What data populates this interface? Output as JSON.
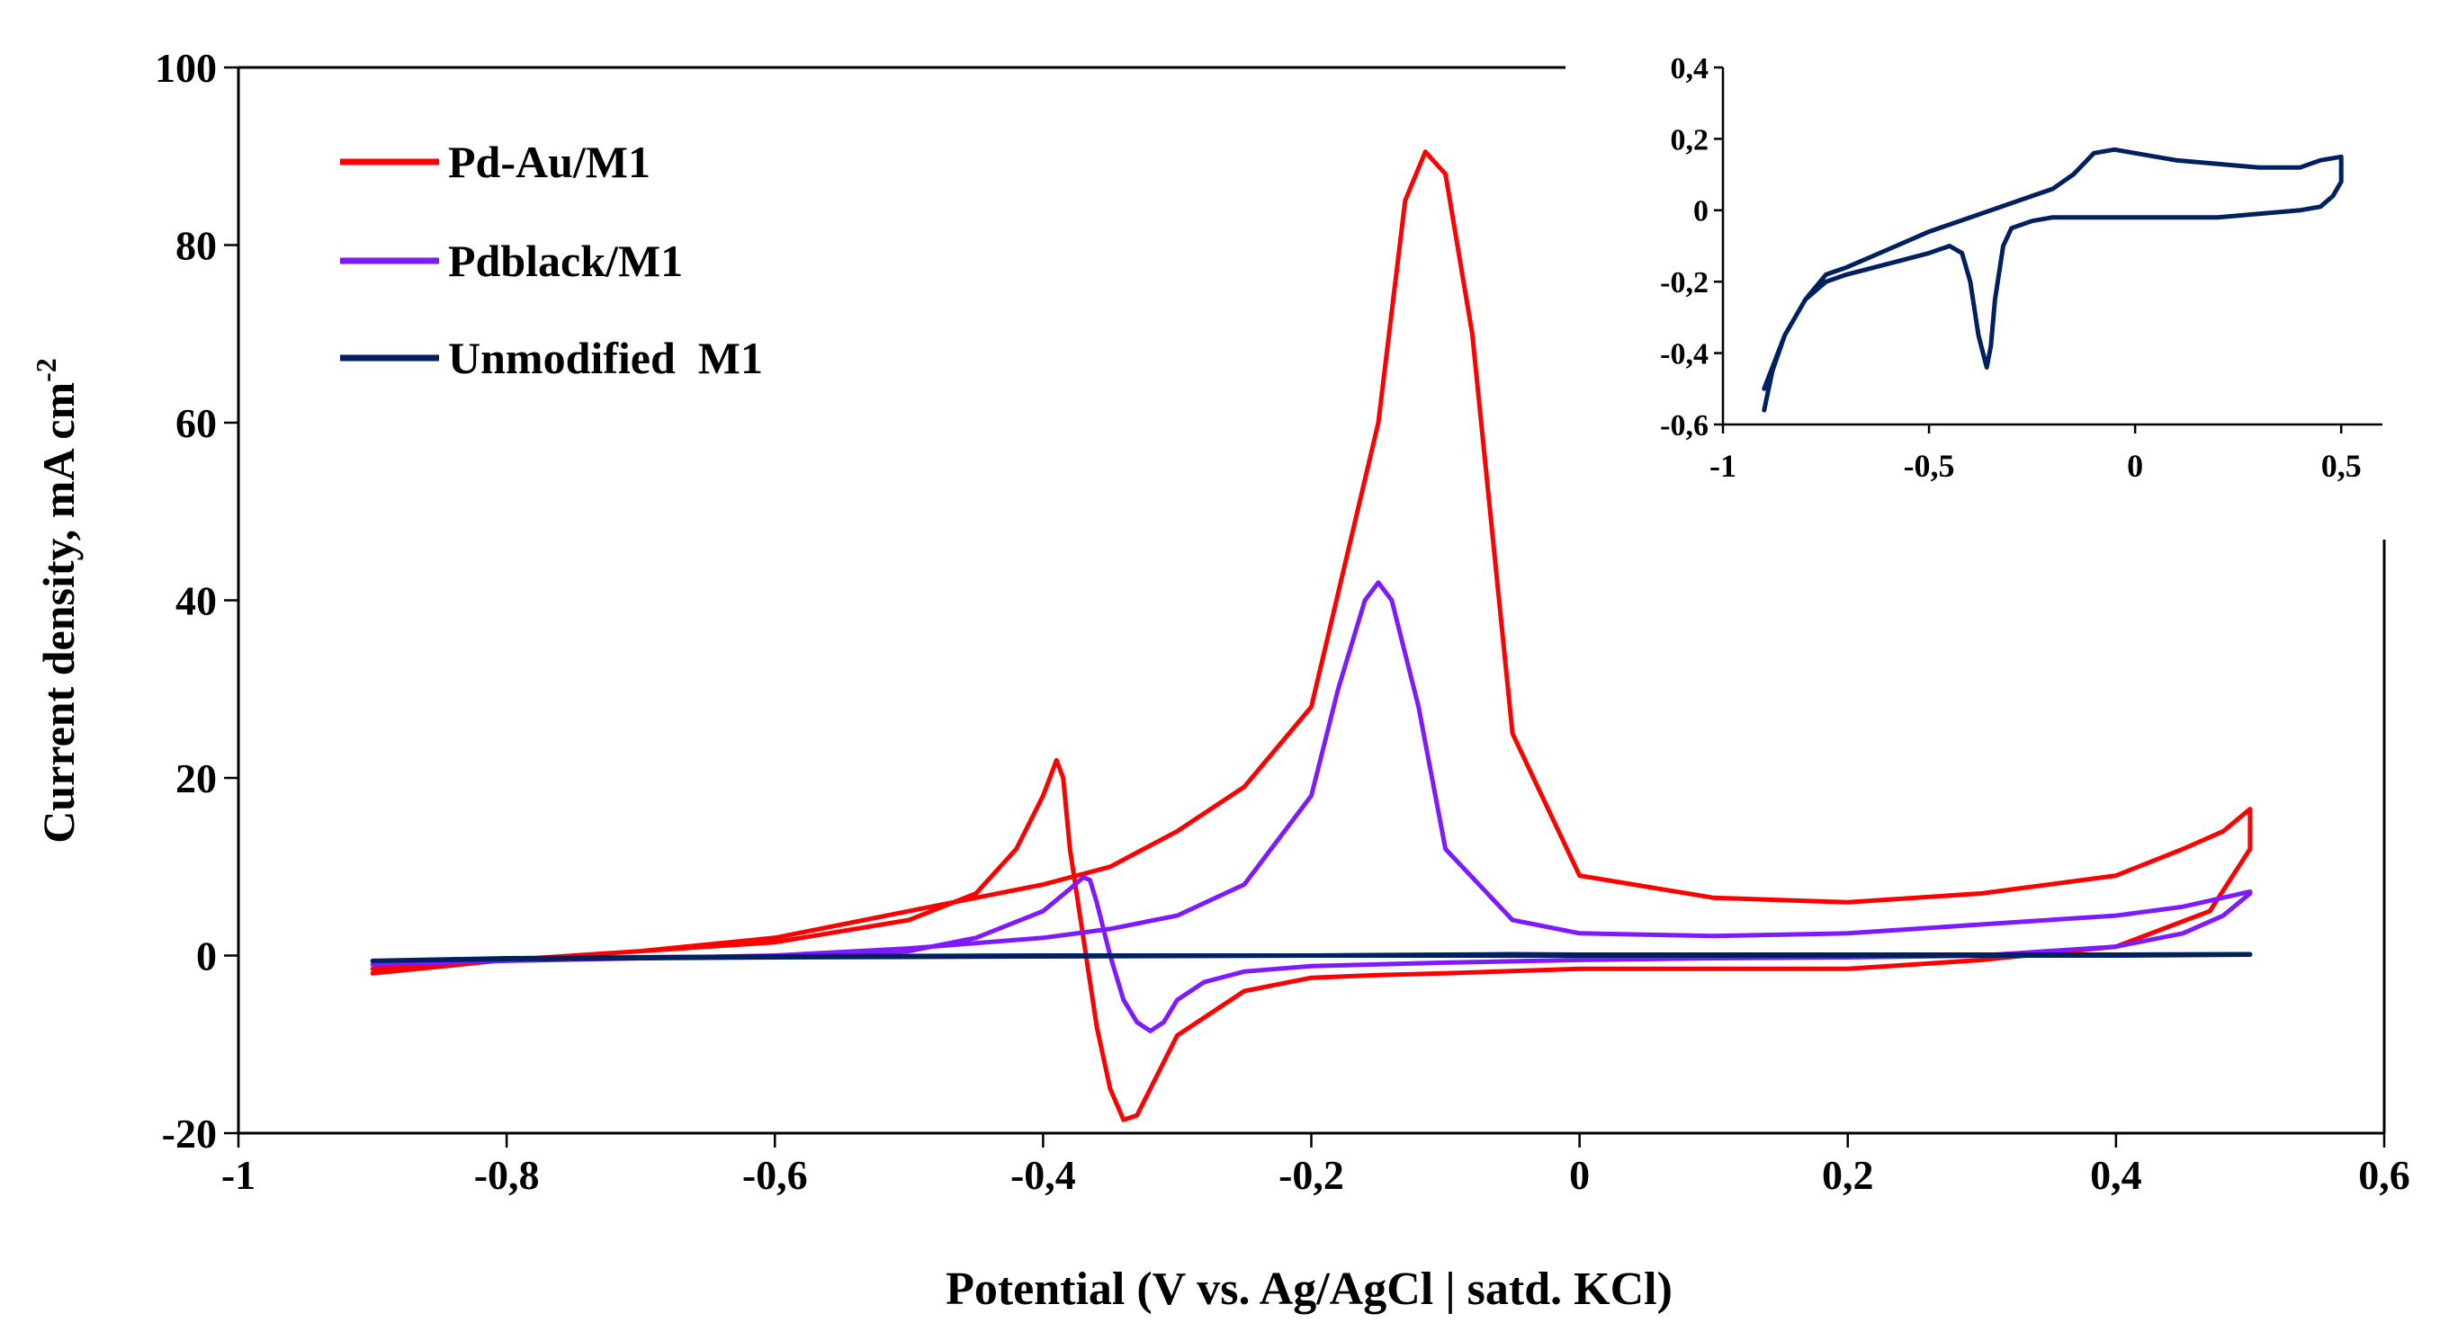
{
  "chart_data": [
    {
      "type": "line",
      "xlabel": "Potential (V vs. Ag/AgCl | satd. KCl)",
      "ylabel_main": "Current  density, mA cm",
      "ylabel_sup": "-2",
      "xlim": [
        -1,
        0.6
      ],
      "ylim": [
        -20,
        100
      ],
      "xticks": [
        -1,
        -0.8,
        -0.6,
        -0.4,
        -0.2,
        0,
        0.2,
        0.4,
        0.6
      ],
      "xtick_labels": [
        "-1",
        "-0,8",
        "-0,6",
        "-0,4",
        "-0,2",
        "0",
        "0,2",
        "0,4",
        "0,6"
      ],
      "yticks": [
        -20,
        0,
        20,
        40,
        60,
        80,
        100
      ],
      "ytick_labels": [
        "-20",
        "0",
        "20",
        "40",
        "60",
        "80",
        "100"
      ],
      "legend_position": "top-left",
      "series": [
        {
          "name": "Pd-Au/M1",
          "color": "#ff0000",
          "x": [
            -0.9,
            -0.8,
            -0.7,
            -0.6,
            -0.5,
            -0.45,
            -0.42,
            -0.4,
            -0.39,
            -0.385,
            -0.38,
            -0.37,
            -0.36,
            -0.35,
            -0.34,
            -0.33,
            -0.32,
            -0.3,
            -0.25,
            -0.2,
            -0.15,
            -0.1,
            0,
            0.1,
            0.2,
            0.3,
            0.4,
            0.47,
            0.5,
            0.5,
            0.48,
            0.45,
            0.4,
            0.3,
            0.2,
            0.1,
            0,
            -0.05,
            -0.08,
            -0.1,
            -0.115,
            -0.13,
            -0.15,
            -0.2,
            -0.25,
            -0.3,
            -0.35,
            -0.4,
            -0.45,
            -0.5,
            -0.6,
            -0.7,
            -0.8,
            -0.9
          ],
          "y": [
            -2,
            -0.5,
            0.5,
            1.5,
            4.0,
            7.0,
            12.0,
            18.0,
            22.0,
            20.0,
            12.0,
            2.0,
            -8.0,
            -15.0,
            -18.5,
            -18.0,
            -15.0,
            -9.0,
            -4.0,
            -2.5,
            -2.2,
            -2.0,
            -1.5,
            -1.5,
            -1.5,
            -0.5,
            1.0,
            5.0,
            12.0,
            16.5,
            14.0,
            12.0,
            9.0,
            7.0,
            6.0,
            6.5,
            9.0,
            25.0,
            70.0,
            88.0,
            90.5,
            85.0,
            60.0,
            28.0,
            19.0,
            14.0,
            10.0,
            8.0,
            6.5,
            5.0,
            2.0,
            0.5,
            -0.5,
            -1.5
          ]
        },
        {
          "name": "Pdblack/M1",
          "color": "#7f1aff",
          "x": [
            -0.9,
            -0.8,
            -0.7,
            -0.6,
            -0.5,
            -0.45,
            -0.4,
            -0.38,
            -0.37,
            -0.365,
            -0.36,
            -0.35,
            -0.34,
            -0.33,
            -0.32,
            -0.31,
            -0.3,
            -0.28,
            -0.25,
            -0.2,
            -0.1,
            0,
            0.1,
            0.2,
            0.3,
            0.4,
            0.45,
            0.48,
            0.5,
            0.5,
            0.45,
            0.4,
            0.3,
            0.2,
            0.1,
            0,
            -0.05,
            -0.1,
            -0.12,
            -0.14,
            -0.15,
            -0.16,
            -0.18,
            -0.2,
            -0.25,
            -0.3,
            -0.35,
            -0.4,
            -0.5,
            -0.6,
            -0.7,
            -0.8,
            -0.9
          ],
          "y": [
            -1,
            -0.5,
            -0.2,
            -0.1,
            0.5,
            2.0,
            5.0,
            7.5,
            8.8,
            8.5,
            6.0,
            0,
            -5.0,
            -7.5,
            -8.5,
            -7.5,
            -5.0,
            -3.0,
            -1.8,
            -1.2,
            -0.8,
            -0.5,
            -0.3,
            -0.2,
            0,
            1.0,
            2.5,
            4.5,
            7.0,
            7.2,
            5.5,
            4.5,
            3.5,
            2.5,
            2.2,
            2.5,
            4.0,
            12.0,
            28.0,
            40.0,
            42.0,
            40.0,
            30.0,
            18.0,
            8.0,
            4.5,
            3.0,
            2.0,
            0.8,
            0,
            -0.3,
            -0.6,
            -1
          ]
        },
        {
          "name": "Unmodified  M1",
          "color": "#002060",
          "x": [
            -0.9,
            -0.8,
            -0.6,
            -0.4,
            -0.2,
            0,
            0.2,
            0.4,
            0.5,
            0.5,
            0.4,
            0.2,
            0,
            -0.05,
            -0.2,
            -0.4,
            -0.6,
            -0.8,
            -0.9
          ],
          "y": [
            -0.6,
            -0.3,
            -0.1,
            0,
            0,
            0,
            0,
            0,
            0.1,
            0.15,
            0.1,
            0.1,
            0.1,
            0.15,
            0,
            -0.1,
            -0.2,
            -0.4,
            -0.6
          ]
        }
      ]
    },
    {
      "type": "line",
      "xlim": [
        -1,
        0.6
      ],
      "ylim": [
        -0.6,
        0.4
      ],
      "xticks": [
        -1,
        -0.5,
        0,
        0.5
      ],
      "xtick_labels": [
        "-1",
        "-0,5",
        "0",
        "0,5"
      ],
      "yticks": [
        -0.6,
        -0.4,
        -0.2,
        0,
        0.2,
        0.4
      ],
      "ytick_labels": [
        "-0,6",
        "-0,4",
        "-0,2",
        "0",
        "0,2",
        "0,4"
      ],
      "series": [
        {
          "color": "#002060",
          "x": [
            -0.9,
            -0.88,
            -0.85,
            -0.8,
            -0.75,
            -0.7,
            -0.6,
            -0.5,
            -0.45,
            -0.42,
            -0.4,
            -0.38,
            -0.36,
            -0.35,
            -0.34,
            -0.32,
            -0.3,
            -0.25,
            -0.2,
            -0.1,
            0,
            0.1,
            0.2,
            0.3,
            0.4,
            0.45,
            0.48,
            0.5,
            0.5,
            0.45,
            0.4,
            0.3,
            0.2,
            0.1,
            0,
            -0.05,
            -0.1,
            -0.15,
            -0.2,
            -0.3,
            -0.4,
            -0.5,
            -0.6,
            -0.7,
            -0.75,
            -0.8,
            -0.85,
            -0.9
          ],
          "y": [
            -0.56,
            -0.45,
            -0.35,
            -0.25,
            -0.2,
            -0.18,
            -0.15,
            -0.12,
            -0.1,
            -0.12,
            -0.2,
            -0.35,
            -0.44,
            -0.38,
            -0.25,
            -0.1,
            -0.05,
            -0.03,
            -0.02,
            -0.02,
            -0.02,
            -0.02,
            -0.02,
            -0.01,
            0.0,
            0.01,
            0.04,
            0.08,
            0.15,
            0.14,
            0.12,
            0.12,
            0.13,
            0.14,
            0.16,
            0.17,
            0.16,
            0.1,
            0.06,
            0.02,
            -0.02,
            -0.06,
            -0.11,
            -0.16,
            -0.18,
            -0.25,
            -0.35,
            -0.5
          ]
        }
      ]
    }
  ]
}
